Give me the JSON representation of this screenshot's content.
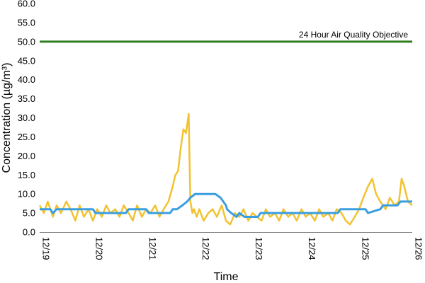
{
  "chart_data": {
    "type": "line",
    "title": "",
    "xlabel": "Time",
    "ylabel": "Concentration (µg/m³)",
    "ylim": [
      0,
      60
    ],
    "y_ticks": [
      0,
      5,
      10,
      15,
      20,
      25,
      30,
      35,
      40,
      45,
      50,
      55,
      60
    ],
    "y_tick_labels": [
      "0.0",
      "5.0",
      "10.0",
      "15.0",
      "20.0",
      "25.0",
      "30.0",
      "35.0",
      "40.0",
      "45.0",
      "50.0",
      "55.0",
      "60.0"
    ],
    "x_tick_labels": [
      "12/19",
      "12/20",
      "12/21",
      "12/22",
      "12/23",
      "12/24",
      "12/25",
      "12/26"
    ],
    "grid": false,
    "colors": {
      "hourly": "#f2c230",
      "rolling": "#3a9ee0",
      "objective": "#2e7d1e"
    },
    "objective": {
      "label": "24 Hour Air Quality Objective",
      "value": 50
    },
    "series": [
      {
        "x": [
          0,
          0.08,
          0.15,
          0.25,
          0.32,
          0.4,
          0.5,
          0.58,
          0.67,
          0.75,
          0.83,
          0.92,
          1.0,
          1.08,
          1.17,
          1.25,
          1.33,
          1.42,
          1.5,
          1.58,
          1.67,
          1.75,
          1.83,
          1.92,
          2.0,
          2.08,
          2.17,
          2.25,
          2.33,
          2.42,
          2.5,
          2.55,
          2.6,
          2.65,
          2.7,
          2.75,
          2.8,
          2.83,
          2.87,
          2.9,
          2.95,
          3.0,
          3.08,
          3.17,
          3.25,
          3.33,
          3.42,
          3.5,
          3.58,
          3.67,
          3.75,
          3.83,
          3.92,
          4.0,
          4.08,
          4.17,
          4.25,
          4.33,
          4.42,
          4.5,
          4.58,
          4.67,
          4.75,
          4.83,
          4.92,
          5.0,
          5.08,
          5.17,
          5.25,
          5.33,
          5.42,
          5.5,
          5.58,
          5.67,
          5.75,
          5.83,
          5.92,
          6.0,
          6.08,
          6.17,
          6.25,
          6.32,
          6.4,
          6.5,
          6.58,
          6.67,
          6.75,
          6.8,
          6.85,
          6.92,
          7.0
        ],
        "values": [
          7,
          5,
          8,
          4,
          7,
          5,
          8,
          6,
          3,
          7,
          4,
          6,
          3,
          6,
          4,
          7,
          5,
          6,
          4,
          7,
          5,
          3,
          7,
          4,
          6,
          5,
          7,
          4,
          6,
          8,
          12,
          15,
          16,
          22,
          27,
          26,
          31,
          8,
          5,
          6,
          4,
          6,
          3,
          5,
          6,
          4,
          7,
          3,
          2,
          5,
          4,
          6,
          3,
          5,
          4,
          3,
          6,
          4,
          5,
          3,
          6,
          4,
          5,
          3,
          6,
          4,
          5,
          3,
          6,
          4,
          5,
          3,
          6,
          5,
          3,
          2,
          4,
          6,
          9,
          12,
          14,
          10,
          8,
          6,
          9,
          7,
          8,
          14,
          12,
          8,
          7
        ]
      },
      {
        "x": [
          0,
          0.2,
          0.25,
          0.32,
          1.0,
          1.05,
          1.62,
          1.67,
          2.0,
          2.05,
          2.45,
          2.5,
          2.58,
          2.68,
          2.77,
          2.83,
          2.92,
          3.3,
          3.4,
          3.5,
          3.52,
          3.6,
          3.7,
          3.75,
          3.85,
          4.1,
          4.15,
          4.47,
          4.52,
          4.98,
          5.02,
          5.6,
          5.65,
          5.75,
          5.8,
          6.12,
          6.17,
          6.4,
          6.45,
          6.72,
          6.78,
          7.0
        ],
        "values": [
          6,
          6,
          5,
          6,
          6,
          5,
          5,
          6,
          6,
          5,
          5,
          6,
          6,
          7,
          8,
          9,
          10,
          10,
          9,
          7,
          6,
          5,
          4,
          5,
          4,
          4,
          5,
          5,
          5,
          5,
          5,
          5,
          6,
          6,
          6,
          6,
          5,
          6,
          7,
          7,
          8,
          8
        ]
      }
    ]
  }
}
